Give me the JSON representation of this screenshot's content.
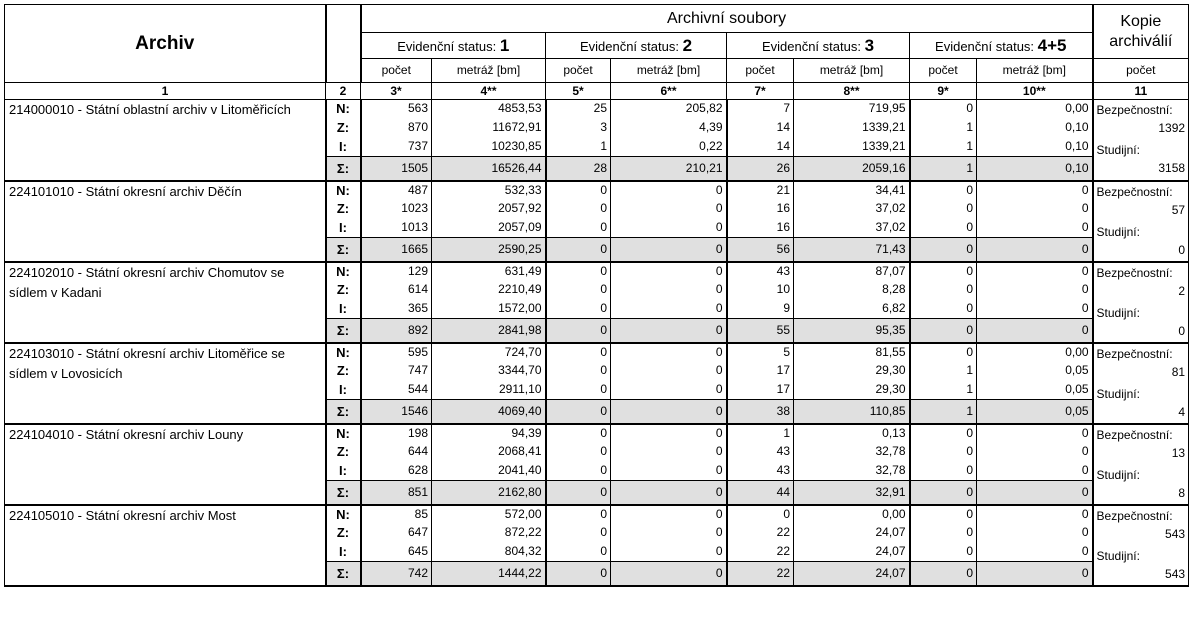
{
  "header": {
    "archiv": "Archiv",
    "archivni_soubory": "Archivní soubory",
    "kopie": [
      "Kopie",
      "archiválií"
    ],
    "status_prefix": "Evidenční status:",
    "statuses": [
      "1",
      "2",
      "3",
      "4+5"
    ],
    "pocet": "počet",
    "metraz": "metráž [bm]",
    "col_nums": [
      "1",
      "2",
      "3*",
      "4**",
      "5*",
      "6**",
      "7*",
      "8**",
      "9*",
      "10**",
      "11"
    ]
  },
  "row_labels": [
    "N:",
    "Z:",
    "I:",
    "Σ:"
  ],
  "side_labels": {
    "bezpecnostni": "Bezpečnostní:",
    "studijni": "Studijní:"
  },
  "archives": [
    {
      "name": "214000010 - Státní oblastní archiv v Litoměřicích",
      "rows": [
        [
          "563",
          "4853,53",
          "25",
          "205,82",
          "7",
          "719,95",
          "0",
          "0,00"
        ],
        [
          "870",
          "11672,91",
          "3",
          "4,39",
          "14",
          "1339,21",
          "1",
          "0,10"
        ],
        [
          "737",
          "10230,85",
          "1",
          "0,22",
          "14",
          "1339,21",
          "1",
          "0,10"
        ]
      ],
      "sum": [
        "1505",
        "16526,44",
        "28",
        "210,21",
        "26",
        "2059,16",
        "1",
        "0,10"
      ],
      "bezpecnostni": "1392",
      "studijni": "3158"
    },
    {
      "name": "224101010 - Státní okresní archiv Děčín",
      "rows": [
        [
          "487",
          "532,33",
          "0",
          "0",
          "21",
          "34,41",
          "0",
          "0"
        ],
        [
          "1023",
          "2057,92",
          "0",
          "0",
          "16",
          "37,02",
          "0",
          "0"
        ],
        [
          "1013",
          "2057,09",
          "0",
          "0",
          "16",
          "37,02",
          "0",
          "0"
        ]
      ],
      "sum": [
        "1665",
        "2590,25",
        "0",
        "0",
        "56",
        "71,43",
        "0",
        "0"
      ],
      "bezpecnostni": "57",
      "studijni": "0"
    },
    {
      "name": "224102010 - Státní okresní archiv Chomutov se sídlem v Kadani",
      "rows": [
        [
          "129",
          "631,49",
          "0",
          "0",
          "43",
          "87,07",
          "0",
          "0"
        ],
        [
          "614",
          "2210,49",
          "0",
          "0",
          "10",
          "8,28",
          "0",
          "0"
        ],
        [
          "365",
          "1572,00",
          "0",
          "0",
          "9",
          "6,82",
          "0",
          "0"
        ]
      ],
      "sum": [
        "892",
        "2841,98",
        "0",
        "0",
        "55",
        "95,35",
        "0",
        "0"
      ],
      "bezpecnostni": "2",
      "studijni": "0"
    },
    {
      "name": "224103010 - Státní okresní archiv Litoměřice se sídlem v Lovosicích",
      "rows": [
        [
          "595",
          "724,70",
          "0",
          "0",
          "5",
          "81,55",
          "0",
          "0,00"
        ],
        [
          "747",
          "3344,70",
          "0",
          "0",
          "17",
          "29,30",
          "1",
          "0,05"
        ],
        [
          "544",
          "2911,10",
          "0",
          "0",
          "17",
          "29,30",
          "1",
          "0,05"
        ]
      ],
      "sum": [
        "1546",
        "4069,40",
        "0",
        "0",
        "38",
        "110,85",
        "1",
        "0,05"
      ],
      "bezpecnostni": "81",
      "studijni": "4"
    },
    {
      "name": "224104010 - Státní okresní archiv Louny",
      "rows": [
        [
          "198",
          "94,39",
          "0",
          "0",
          "1",
          "0,13",
          "0",
          "0"
        ],
        [
          "644",
          "2068,41",
          "0",
          "0",
          "43",
          "32,78",
          "0",
          "0"
        ],
        [
          "628",
          "2041,40",
          "0",
          "0",
          "43",
          "32,78",
          "0",
          "0"
        ]
      ],
      "sum": [
        "851",
        "2162,80",
        "0",
        "0",
        "44",
        "32,91",
        "0",
        "0"
      ],
      "bezpecnostni": "13",
      "studijni": "8"
    },
    {
      "name": "224105010 - Státní okresní archiv Most",
      "rows": [
        [
          "85",
          "572,00",
          "0",
          "0",
          "0",
          "0,00",
          "0",
          "0"
        ],
        [
          "647",
          "872,22",
          "0",
          "0",
          "22",
          "24,07",
          "0",
          "0"
        ],
        [
          "645",
          "804,32",
          "0",
          "0",
          "22",
          "24,07",
          "0",
          "0"
        ]
      ],
      "sum": [
        "742",
        "1444,22",
        "0",
        "0",
        "22",
        "24,07",
        "0",
        "0"
      ],
      "bezpecnostni": "543",
      "studijni": "543"
    }
  ]
}
